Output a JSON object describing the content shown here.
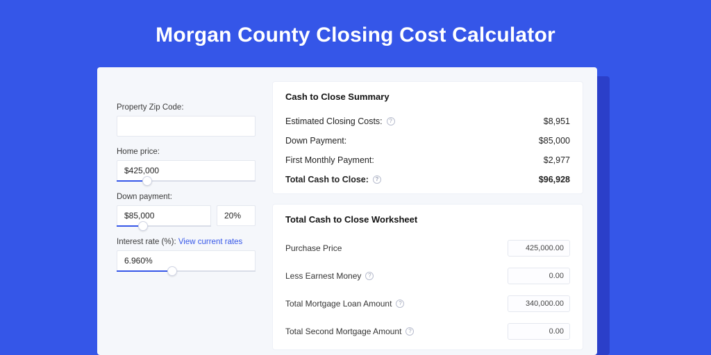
{
  "colors": {
    "page_bg": "#3556e8",
    "card_bg": "#f5f7fb",
    "shadow_bg": "#2b3fc9",
    "panel_bg": "#ffffff",
    "border": "#e4e7ef",
    "text": "#222222",
    "link": "#3556e8",
    "slider_fill": "#3556e8",
    "slider_track": "#d9dde8"
  },
  "title": "Morgan County Closing Cost Calculator",
  "form": {
    "zip_label": "Property Zip Code:",
    "zip_value": "",
    "home_price_label": "Home price:",
    "home_price_value": "$425,000",
    "down_payment_label": "Down payment:",
    "down_payment_value": "$85,000",
    "down_payment_pct": "20%",
    "interest_label": "Interest rate (%):",
    "interest_link": "View current rates",
    "interest_value": "6.960%",
    "sliders": {
      "home_price_fill_pct": 22,
      "down_payment_fill_pct": 28,
      "interest_fill_pct": 40
    }
  },
  "summary": {
    "title": "Cash to Close Summary",
    "rows": [
      {
        "label": "Estimated Closing Costs:",
        "info": true,
        "value": "$8,951",
        "bold": false
      },
      {
        "label": "Down Payment:",
        "info": false,
        "value": "$85,000",
        "bold": false
      },
      {
        "label": "First Monthly Payment:",
        "info": false,
        "value": "$2,977",
        "bold": false
      },
      {
        "label": "Total Cash to Close:",
        "info": true,
        "value": "$96,928",
        "bold": true
      }
    ]
  },
  "worksheet": {
    "title": "Total Cash to Close Worksheet",
    "rows": [
      {
        "label": "Purchase Price",
        "info": false,
        "value": "425,000.00"
      },
      {
        "label": "Less Earnest Money",
        "info": true,
        "value": "0.00"
      },
      {
        "label": "Total Mortgage Loan Amount",
        "info": true,
        "value": "340,000.00"
      },
      {
        "label": "Total Second Mortgage Amount",
        "info": true,
        "value": "0.00"
      }
    ]
  }
}
